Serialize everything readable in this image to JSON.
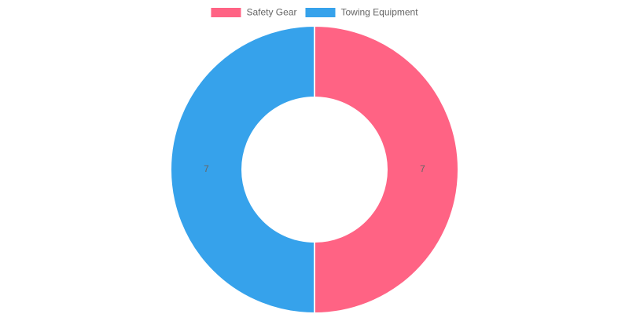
{
  "chart_data": {
    "type": "doughnut",
    "categories": [
      "Safety Gear",
      "Towing Equipment"
    ],
    "values": [
      7,
      7
    ],
    "colors": [
      "#ff6384",
      "#36a2eb"
    ],
    "legend": "top"
  }
}
